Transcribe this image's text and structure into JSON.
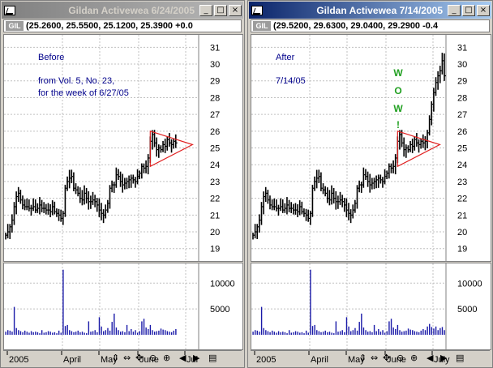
{
  "left": {
    "title": "Gildan Activewea   6/24/2005",
    "symbol": "GIL",
    "ohlc": "(25.2600, 25.5500, 25.1200, 25.3900 +0.0",
    "notes": [
      "Before",
      "from Vol. 5, No. 23,",
      "for the week of 6/27/05"
    ],
    "x_labels": [
      "2005",
      "April",
      "May",
      "June",
      "Jul"
    ],
    "last_date_index": 125
  },
  "right": {
    "title": "Gildan Activewea   7/14/2005",
    "symbol": "GIL",
    "ohlc": "(29.5200, 29.6300, 29.0400, 29.2900 -0.4",
    "notes": [
      "After",
      "7/14/05"
    ],
    "annotation": [
      "W",
      "O",
      "W",
      "!"
    ],
    "x_labels": [
      "2005",
      "April",
      "May",
      "June",
      "July"
    ],
    "last_date_index": 138
  },
  "window_buttons": {
    "minimize": "_",
    "maximize": "□",
    "close": "×"
  },
  "controls": [
    "⇕",
    "⇔",
    "✥",
    "⊖",
    "⊕",
    "◀",
    "▶",
    "▤"
  ],
  "colors": {
    "price_bars": "#000000",
    "volume_bars": "#1a1aa8",
    "triangle": "#e02020",
    "notes": "#00008b",
    "wow": "#22a022",
    "grid": "#c0c0c0"
  },
  "chart_data": {
    "type": "bar",
    "title": "Gildan Activewea",
    "price_axis": {
      "ticks": [
        19,
        20,
        21,
        22,
        23,
        24,
        25,
        26,
        27,
        28,
        29,
        30,
        31
      ],
      "ylim": [
        18.6,
        31.5
      ]
    },
    "volume_axis": {
      "ticks": [
        5000,
        10000
      ],
      "ylim": [
        0,
        13500
      ]
    },
    "closes": [
      19.8,
      20.0,
      20.3,
      20.7,
      21.5,
      22.1,
      22.3,
      21.9,
      21.6,
      21.5,
      21.5,
      21.4,
      21.4,
      21.5,
      21.3,
      21.4,
      21.6,
      21.4,
      21.4,
      21.3,
      21.3,
      21.2,
      21.5,
      21.2,
      21.1,
      21.0,
      20.8,
      21.1,
      22.6,
      23.0,
      23.2,
      23.3,
      22.6,
      22.5,
      22.3,
      22.0,
      21.9,
      22.3,
      22.0,
      21.8,
      21.8,
      21.9,
      21.8,
      21.6,
      21.3,
      21.1,
      21.0,
      21.3,
      21.7,
      22.6,
      22.8,
      22.8,
      23.4,
      23.3,
      23.0,
      22.8,
      22.9,
      23.0,
      23.1,
      23.2,
      23.1,
      23.0,
      23.3,
      23.5,
      23.9,
      23.8,
      23.9,
      24.4,
      25.4,
      25.8,
      25.3,
      24.9,
      25.0,
      24.9,
      25.2,
      25.1,
      25.5,
      25.3,
      25.2,
      25.4,
      25.3,
      25.4,
      25.9,
      26.7,
      27.6,
      28.3,
      28.9,
      29.3,
      29.6,
      30.2,
      29.3
    ],
    "volumes": [
      600,
      900,
      800,
      600,
      5400,
      1300,
      900,
      700,
      500,
      800,
      600,
      400,
      700,
      500,
      600,
      500,
      300,
      900,
      400,
      500,
      700,
      600,
      400,
      500,
      300,
      800,
      400,
      12600,
      1700,
      1900,
      900,
      700,
      500,
      600,
      800,
      500,
      600,
      400,
      300,
      2600,
      600,
      700,
      900,
      500,
      3400,
      1600,
      700,
      900,
      1300,
      800,
      2500,
      4100,
      1400,
      900,
      600,
      700,
      500,
      1900,
      700,
      1100,
      600,
      900,
      400,
      700,
      2600,
      3100,
      1400,
      1100,
      1900,
      900,
      600,
      700,
      800,
      1200,
      1000,
      900,
      700,
      600,
      500,
      800,
      1100,
      900,
      1600,
      2100,
      1500,
      1200,
      1600,
      900,
      1300,
      1500,
      900
    ],
    "pattern": {
      "name": "symmetrical triangle",
      "apex_price": 25.2
    }
  }
}
